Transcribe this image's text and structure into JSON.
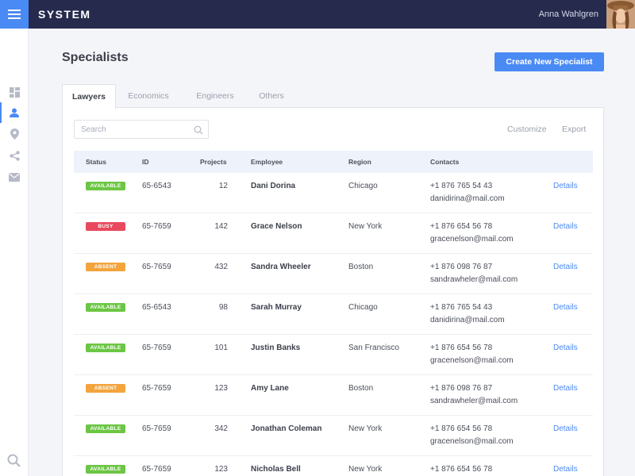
{
  "app": {
    "brand": "SYSTEM",
    "user_name": "Anna Wahlgren"
  },
  "page": {
    "title": "Specialists",
    "create_button": "Create New Specialist"
  },
  "tabs": [
    "Lawyers",
    "Economics",
    "Engineers",
    "Others"
  ],
  "toolbar": {
    "search_placeholder": "Search",
    "customize": "Customize",
    "export": "Export"
  },
  "table": {
    "headers": [
      "Status",
      "ID",
      "Projects",
      "Employee",
      "Region",
      "Contacts"
    ],
    "details_label": "Details",
    "rows": [
      {
        "status": "AVAILABLE",
        "id": "65-6543",
        "projects": "12",
        "employee": "Dani Dorina",
        "region": "Chicago",
        "phone": "+1 876 765 54 43",
        "email": "danidirina@mail.com"
      },
      {
        "status": "BUSY",
        "id": "65-7659",
        "projects": "142",
        "employee": "Grace Nelson",
        "region": "New York",
        "phone": "+1 876 654 56 78",
        "email": "gracenelson@mail.com"
      },
      {
        "status": "ABSENT",
        "id": "65-7659",
        "projects": "432",
        "employee": "Sandra Wheeler",
        "region": "Boston",
        "phone": "+1 876 098 76 87",
        "email": "sandrawheler@mail.com"
      },
      {
        "status": "AVAILABLE",
        "id": "65-6543",
        "projects": "98",
        "employee": "Sarah Murray",
        "region": "Chicago",
        "phone": "+1 876 765 54 43",
        "email": "danidirina@mail.com"
      },
      {
        "status": "AVAILABLE",
        "id": "65-7659",
        "projects": "101",
        "employee": "Justin Banks",
        "region": "San Francisco",
        "phone": "+1 876 654 56 78",
        "email": "gracenelson@mail.com"
      },
      {
        "status": "ABSENT",
        "id": "65-7659",
        "projects": "123",
        "employee": "Amy Lane",
        "region": "Boston",
        "phone": "+1 876 098 76 87",
        "email": "sandrawheler@mail.com"
      },
      {
        "status": "AVAILABLE",
        "id": "65-7659",
        "projects": "342",
        "employee": "Jonathan Coleman",
        "region": "New York",
        "phone": "+1 876 654 56 78",
        "email": "gracenelson@mail.com"
      },
      {
        "status": "AVAILABLE",
        "id": "65-7659",
        "projects": "123",
        "employee": "Nicholas Bell",
        "region": "New York",
        "phone": "+1 876 654 56 78",
        "email": ""
      }
    ]
  },
  "colors": {
    "accent": "#4a8af4",
    "topbar": "#262b4e",
    "status_available": "#6cc644",
    "status_busy": "#e8495f",
    "status_absent": "#f3a43c"
  },
  "icons": {
    "sidebar": [
      "dashboard-icon",
      "user-icon",
      "location-icon",
      "share-icon",
      "mail-icon"
    ],
    "bottom": "search-icon"
  }
}
